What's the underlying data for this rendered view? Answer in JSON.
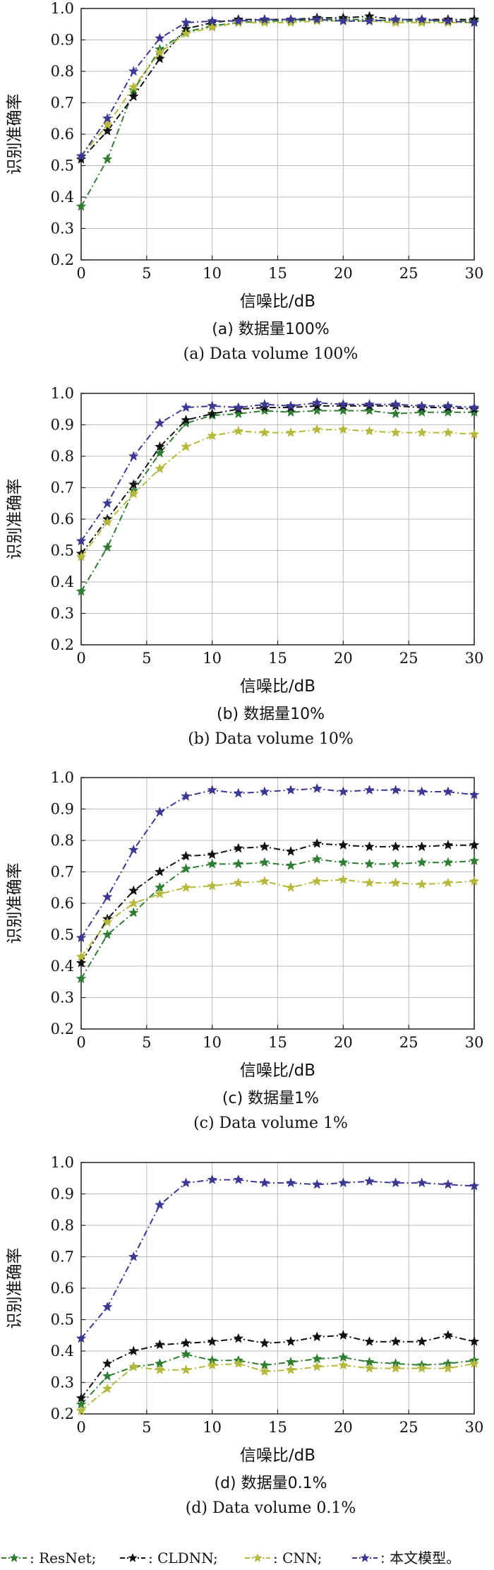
{
  "colors": {
    "ResNet": "#2e7d32",
    "CLDNN": "#111111",
    "CNN": "#b5b83a",
    "Proposed": "#3b3893",
    "grid": "#bbbbbb",
    "axis": "#222222"
  },
  "legend": [
    {
      "key": "ResNet",
      "label": ": ResNet;"
    },
    {
      "key": "CLDNN",
      "label": ": CLDNN;"
    },
    {
      "key": "CNN",
      "label": ": CNN;"
    },
    {
      "key": "Proposed",
      "label": ": 本文模型。"
    }
  ],
  "chart_data": [
    {
      "type": "line",
      "caption_zh": "(a) 数据量100%",
      "caption_en": "(a) Data volume 100%",
      "xlabel": "信噪比/dB",
      "ylabel": "识别准确率",
      "xlim": [
        0,
        30
      ],
      "ylim": [
        0.2,
        1.0
      ],
      "xticks": [
        0,
        5,
        10,
        15,
        20,
        25,
        30
      ],
      "yticks": [
        0.2,
        0.3,
        0.4,
        0.5,
        0.6,
        0.7,
        0.8,
        0.9,
        1.0
      ],
      "x": [
        0,
        2,
        4,
        6,
        8,
        10,
        12,
        14,
        16,
        18,
        20,
        22,
        24,
        26,
        28,
        30
      ],
      "series": [
        {
          "key": "ResNet",
          "values": [
            0.37,
            0.52,
            0.74,
            0.87,
            0.925,
            0.945,
            0.955,
            0.96,
            0.96,
            0.965,
            0.965,
            0.965,
            0.96,
            0.96,
            0.96,
            0.96
          ]
        },
        {
          "key": "CLDNN",
          "values": [
            0.52,
            0.61,
            0.72,
            0.84,
            0.935,
            0.955,
            0.965,
            0.965,
            0.965,
            0.97,
            0.97,
            0.975,
            0.965,
            0.965,
            0.965,
            0.965
          ]
        },
        {
          "key": "CNN",
          "values": [
            0.53,
            0.63,
            0.75,
            0.86,
            0.92,
            0.94,
            0.955,
            0.955,
            0.955,
            0.96,
            0.96,
            0.96,
            0.955,
            0.955,
            0.955,
            0.955
          ]
        },
        {
          "key": "Proposed",
          "values": [
            0.53,
            0.65,
            0.8,
            0.905,
            0.955,
            0.96,
            0.96,
            0.965,
            0.965,
            0.965,
            0.96,
            0.96,
            0.965,
            0.965,
            0.96,
            0.955
          ]
        }
      ]
    },
    {
      "type": "line",
      "caption_zh": "(b) 数据量10%",
      "caption_en": "(b) Data volume 10%",
      "xlabel": "信噪比/dB",
      "ylabel": "识别准确率",
      "xlim": [
        0,
        30
      ],
      "ylim": [
        0.2,
        1.0
      ],
      "xticks": [
        0,
        5,
        10,
        15,
        20,
        25,
        30
      ],
      "yticks": [
        0.2,
        0.3,
        0.4,
        0.5,
        0.6,
        0.7,
        0.8,
        0.9,
        1.0
      ],
      "x": [
        0,
        2,
        4,
        6,
        8,
        10,
        12,
        14,
        16,
        18,
        20,
        22,
        24,
        26,
        28,
        30
      ],
      "series": [
        {
          "key": "ResNet",
          "values": [
            0.37,
            0.51,
            0.69,
            0.81,
            0.905,
            0.93,
            0.935,
            0.945,
            0.94,
            0.945,
            0.945,
            0.945,
            0.935,
            0.94,
            0.94,
            0.94
          ]
        },
        {
          "key": "CLDNN",
          "values": [
            0.49,
            0.6,
            0.71,
            0.83,
            0.915,
            0.935,
            0.95,
            0.955,
            0.955,
            0.96,
            0.96,
            0.96,
            0.96,
            0.955,
            0.955,
            0.95
          ]
        },
        {
          "key": "CNN",
          "values": [
            0.48,
            0.59,
            0.68,
            0.76,
            0.83,
            0.865,
            0.88,
            0.875,
            0.875,
            0.885,
            0.885,
            0.88,
            0.875,
            0.875,
            0.875,
            0.87
          ]
        },
        {
          "key": "Proposed",
          "values": [
            0.53,
            0.65,
            0.8,
            0.905,
            0.955,
            0.96,
            0.955,
            0.965,
            0.96,
            0.97,
            0.965,
            0.965,
            0.965,
            0.96,
            0.96,
            0.955
          ]
        }
      ]
    },
    {
      "type": "line",
      "caption_zh": "(c) 数据量1%",
      "caption_en": "(c) Data volume 1%",
      "xlabel": "信噪比/dB",
      "ylabel": "识别准确率",
      "xlim": [
        0,
        30
      ],
      "ylim": [
        0.2,
        1.0
      ],
      "xticks": [
        0,
        5,
        10,
        15,
        20,
        25,
        30
      ],
      "yticks": [
        0.2,
        0.3,
        0.4,
        0.5,
        0.6,
        0.7,
        0.8,
        0.9,
        1.0
      ],
      "x": [
        0,
        2,
        4,
        6,
        8,
        10,
        12,
        14,
        16,
        18,
        20,
        22,
        24,
        26,
        28,
        30
      ],
      "series": [
        {
          "key": "ResNet",
          "values": [
            0.36,
            0.5,
            0.57,
            0.65,
            0.71,
            0.725,
            0.725,
            0.73,
            0.72,
            0.74,
            0.73,
            0.725,
            0.725,
            0.73,
            0.73,
            0.735
          ]
        },
        {
          "key": "CLDNN",
          "values": [
            0.41,
            0.55,
            0.64,
            0.7,
            0.75,
            0.755,
            0.775,
            0.78,
            0.765,
            0.79,
            0.785,
            0.78,
            0.78,
            0.78,
            0.785,
            0.785
          ]
        },
        {
          "key": "CNN",
          "values": [
            0.43,
            0.54,
            0.6,
            0.63,
            0.65,
            0.655,
            0.665,
            0.67,
            0.65,
            0.67,
            0.675,
            0.665,
            0.665,
            0.66,
            0.665,
            0.67
          ]
        },
        {
          "key": "Proposed",
          "values": [
            0.49,
            0.62,
            0.77,
            0.89,
            0.94,
            0.96,
            0.95,
            0.955,
            0.96,
            0.965,
            0.955,
            0.96,
            0.96,
            0.955,
            0.955,
            0.945
          ]
        }
      ]
    },
    {
      "type": "line",
      "caption_zh": "(d) 数据量0.1%",
      "caption_en": "(d) Data volume 0.1%",
      "xlabel": "信噪比/dB",
      "ylabel": "识别准确率",
      "xlim": [
        0,
        30
      ],
      "ylim": [
        0.2,
        1.0
      ],
      "xticks": [
        0,
        5,
        10,
        15,
        20,
        25,
        30
      ],
      "yticks": [
        0.2,
        0.3,
        0.4,
        0.5,
        0.6,
        0.7,
        0.8,
        0.9,
        1.0
      ],
      "x": [
        0,
        2,
        4,
        6,
        8,
        10,
        12,
        14,
        16,
        18,
        20,
        22,
        24,
        26,
        28,
        30
      ],
      "series": [
        {
          "key": "ResNet",
          "values": [
            0.23,
            0.32,
            0.35,
            0.36,
            0.39,
            0.37,
            0.37,
            0.355,
            0.365,
            0.375,
            0.38,
            0.365,
            0.36,
            0.355,
            0.36,
            0.37
          ]
        },
        {
          "key": "CLDNN",
          "values": [
            0.25,
            0.36,
            0.4,
            0.42,
            0.425,
            0.43,
            0.44,
            0.425,
            0.43,
            0.445,
            0.45,
            0.43,
            0.43,
            0.43,
            0.45,
            0.43
          ]
        },
        {
          "key": "CNN",
          "values": [
            0.21,
            0.28,
            0.35,
            0.34,
            0.34,
            0.355,
            0.36,
            0.335,
            0.34,
            0.35,
            0.355,
            0.345,
            0.345,
            0.345,
            0.345,
            0.36
          ]
        },
        {
          "key": "Proposed",
          "values": [
            0.44,
            0.54,
            0.7,
            0.865,
            0.935,
            0.945,
            0.945,
            0.935,
            0.935,
            0.93,
            0.935,
            0.94,
            0.935,
            0.935,
            0.93,
            0.925
          ]
        }
      ]
    }
  ]
}
